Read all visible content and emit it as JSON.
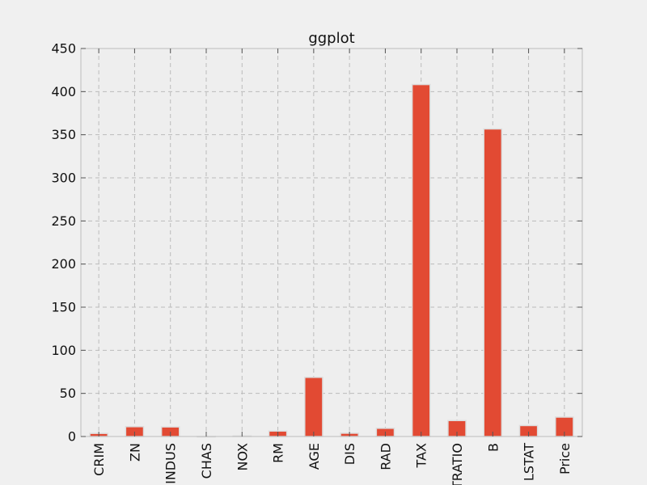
{
  "chart_data": {
    "type": "bar",
    "title": "ggplot",
    "xlabel": "",
    "ylabel": "",
    "categories": [
      "CRIM",
      "ZN",
      "INDUS",
      "CHAS",
      "NOX",
      "RM",
      "AGE",
      "DIS",
      "RAD",
      "TAX",
      "PTRATIO",
      "B",
      "LSTAT",
      "Price"
    ],
    "values": [
      3.6,
      11.4,
      11.1,
      0.07,
      0.55,
      6.3,
      68.6,
      3.8,
      9.5,
      408.2,
      18.5,
      356.7,
      12.7,
      22.5
    ],
    "ylim": [
      0,
      450
    ],
    "yticks": [
      "0",
      "50",
      "100",
      "150",
      "200",
      "250",
      "300",
      "350",
      "400",
      "450"
    ],
    "grid": true,
    "colors": {
      "bar": "#e24a33",
      "bar_edge": "#dddddd",
      "plot_background": "#eeeeee",
      "figure_background": "#f0f0f0",
      "grid": "#bbbbbb",
      "spine": "#bcbcbc"
    }
  }
}
